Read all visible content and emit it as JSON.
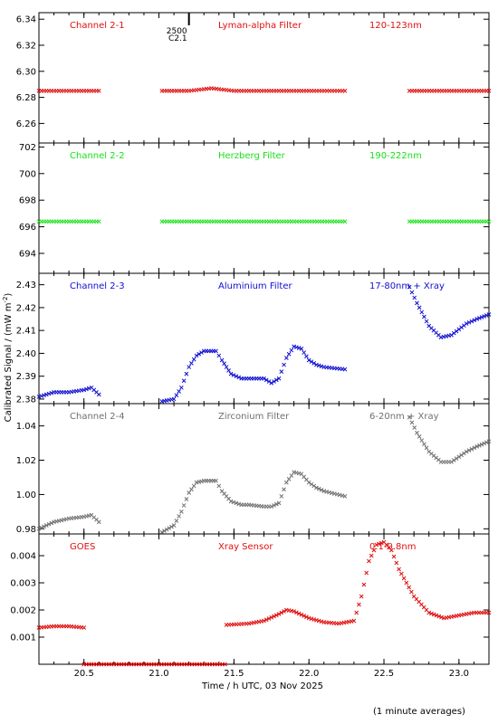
{
  "figure": {
    "ylabel_main": "Calibrated Signal / (mW m",
    "ylabel_sup": "-2",
    "ylabel_close": ")",
    "xlabel": "Time / h UTC, 03 Nov 2025",
    "footnote": "(1 minute averages)",
    "marker": "×",
    "xlim": [
      20.2,
      23.2
    ],
    "xticks": [
      "20.5",
      "21.0",
      "21.5",
      "22.0",
      "22.5",
      "23.0"
    ],
    "xtick_values": [
      20.5,
      21.0,
      21.5,
      22.0,
      22.5,
      23.0
    ],
    "event_marker": {
      "x": 21.2,
      "label1": "2500",
      "label2": "C2.1",
      "color": "#000000"
    }
  },
  "chart_data": [
    {
      "type": "scatter",
      "labels": [
        "Channel 2-1",
        "Lyman-alpha Filter",
        "120-123nm"
      ],
      "color": "#e01010",
      "ylim": [
        6.245,
        6.345
      ],
      "yticks": [
        "6.26",
        "6.28",
        "6.30",
        "6.32",
        "6.34"
      ],
      "ytick_values": [
        6.26,
        6.28,
        6.3,
        6.32,
        6.34
      ],
      "series": [
        {
          "x": [
            20.2,
            20.6
          ],
          "y": [
            6.285,
            6.285
          ]
        },
        {
          "x": [
            21.02,
            21.2,
            21.35,
            21.5,
            21.8,
            22.0,
            22.24
          ],
          "y": [
            6.285,
            6.285,
            6.287,
            6.285,
            6.285,
            6.285,
            6.285
          ]
        },
        {
          "x": [
            22.67,
            23.2
          ],
          "y": [
            6.285,
            6.285
          ]
        }
      ]
    },
    {
      "type": "scatter",
      "labels": [
        "Channel 2-2",
        "Herzberg Filter",
        "190-222nm"
      ],
      "color": "#19e019",
      "ylim": [
        692.5,
        702.3
      ],
      "yticks": [
        "694",
        "696",
        "698",
        "700",
        "702"
      ],
      "ytick_values": [
        694,
        696,
        698,
        700,
        702
      ],
      "series": [
        {
          "x": [
            20.2,
            20.6
          ],
          "y": [
            696.4,
            696.4
          ]
        },
        {
          "x": [
            21.02,
            21.4,
            21.8,
            22.24
          ],
          "y": [
            696.4,
            696.4,
            696.4,
            696.4
          ]
        },
        {
          "x": [
            22.67,
            23.2
          ],
          "y": [
            696.4,
            696.4
          ]
        }
      ]
    },
    {
      "type": "scatter",
      "labels": [
        "Channel 2-3",
        "Aluminium Filter",
        "17-80nm + Xray"
      ],
      "color": "#1010d0",
      "ylim": [
        2.378,
        2.435
      ],
      "yticks": [
        "2.38",
        "2.39",
        "2.40",
        "2.41",
        "2.42",
        "2.43"
      ],
      "ytick_values": [
        2.38,
        2.39,
        2.4,
        2.41,
        2.42,
        2.43
      ],
      "series": [
        {
          "x": [
            20.2,
            20.3,
            20.4,
            20.5,
            20.55,
            20.6
          ],
          "y": [
            2.381,
            2.383,
            2.383,
            2.384,
            2.385,
            2.382
          ]
        },
        {
          "x": [
            21.02,
            21.1,
            21.15,
            21.2,
            21.25,
            21.3,
            21.38,
            21.42,
            21.48,
            21.55,
            21.6,
            21.7,
            21.75,
            21.8,
            21.85,
            21.9,
            21.95,
            22.0,
            22.05,
            22.1,
            22.24
          ],
          "y": [
            2.379,
            2.38,
            2.385,
            2.394,
            2.399,
            2.401,
            2.401,
            2.397,
            2.391,
            2.389,
            2.389,
            2.389,
            2.387,
            2.389,
            2.398,
            2.403,
            2.402,
            2.397,
            2.395,
            2.394,
            2.393
          ]
        },
        {
          "x": [
            22.67,
            22.72,
            22.8,
            22.88,
            22.95,
            23.05,
            23.12,
            23.2
          ],
          "y": [
            2.429,
            2.422,
            2.412,
            2.407,
            2.408,
            2.413,
            2.415,
            2.417
          ]
        }
      ]
    },
    {
      "type": "scatter",
      "labels": [
        "Channel 2-4",
        "Zirconium Filter",
        "6-20nm + Xray"
      ],
      "color": "#707070",
      "ylim": [
        0.977,
        1.053
      ],
      "yticks": [
        "0.98",
        "1.00",
        "1.02",
        "1.04"
      ],
      "ytick_values": [
        0.98,
        1.0,
        1.02,
        1.04
      ],
      "series": [
        {
          "x": [
            20.2,
            20.3,
            20.4,
            20.5,
            20.55,
            20.6
          ],
          "y": [
            0.98,
            0.984,
            0.986,
            0.987,
            0.988,
            0.984
          ]
        },
        {
          "x": [
            21.02,
            21.1,
            21.15,
            21.2,
            21.25,
            21.3,
            21.38,
            21.42,
            21.48,
            21.55,
            21.6,
            21.7,
            21.75,
            21.8,
            21.85,
            21.9,
            21.95,
            22.0,
            22.05,
            22.1,
            22.24
          ],
          "y": [
            0.978,
            0.982,
            0.99,
            1.001,
            1.007,
            1.008,
            1.008,
            1.002,
            0.996,
            0.994,
            0.994,
            0.993,
            0.993,
            0.995,
            1.007,
            1.013,
            1.012,
            1.007,
            1.004,
            1.002,
            0.999
          ]
        },
        {
          "x": [
            22.67,
            22.72,
            22.8,
            22.88,
            22.95,
            23.05,
            23.12,
            23.2
          ],
          "y": [
            1.045,
            1.036,
            1.025,
            1.019,
            1.019,
            1.025,
            1.028,
            1.031
          ]
        }
      ]
    },
    {
      "type": "scatter",
      "labels": [
        "GOES",
        "Xray Sensor",
        "0.1-0.8nm"
      ],
      "color": "#e01010",
      "ylim": [
        0.0,
        0.0048
      ],
      "yticks": [
        "0.001",
        "0.002",
        "0.003",
        "0.004"
      ],
      "ytick_values": [
        0.001,
        0.002,
        0.003,
        0.004
      ],
      "series": [
        {
          "x": [
            20.2,
            20.3,
            20.4,
            20.5
          ],
          "y": [
            0.00135,
            0.0014,
            0.0014,
            0.00135
          ]
        },
        {
          "x": [
            20.5,
            21.0,
            21.44
          ],
          "y": [
            0.0,
            0.0,
            0.0
          ]
        },
        {
          "x": [
            21.45,
            21.6,
            21.7,
            21.8,
            21.85,
            21.9,
            22.0,
            22.1,
            22.2,
            22.3,
            22.35,
            22.4,
            22.45,
            22.5,
            22.55,
            22.6,
            22.7,
            22.8,
            22.9,
            23.0,
            23.1,
            23.2
          ],
          "y": [
            0.00145,
            0.0015,
            0.0016,
            0.00185,
            0.002,
            0.00195,
            0.0017,
            0.00155,
            0.0015,
            0.0016,
            0.0025,
            0.0038,
            0.0044,
            0.0045,
            0.0042,
            0.0035,
            0.0025,
            0.0019,
            0.0017,
            0.0018,
            0.0019,
            0.0019
          ]
        }
      ]
    }
  ]
}
